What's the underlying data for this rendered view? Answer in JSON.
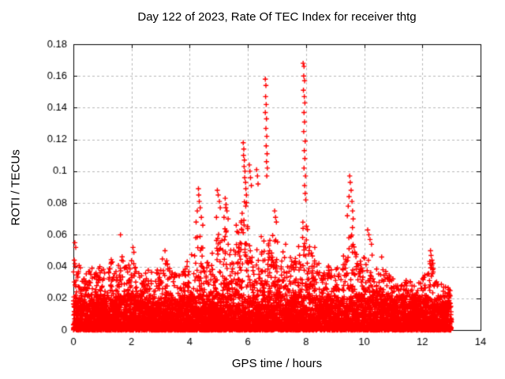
{
  "title": "Day 122 of 2023, Rate Of TEC Index for receiver thtg",
  "x_axis": {
    "label": "GPS time / hours",
    "min": 0,
    "max": 14,
    "tick_values": [
      0,
      2,
      4,
      6,
      8,
      10,
      12,
      14
    ],
    "tick_labels": [
      "0",
      "2",
      "4",
      "6",
      "8",
      "10",
      "12",
      "14"
    ]
  },
  "y_axis": {
    "label": "ROTI / TECUs",
    "min": 0,
    "max": 0.18,
    "tick_values": [
      0,
      0.02,
      0.04,
      0.06,
      0.08,
      0.1,
      0.12,
      0.14,
      0.16,
      0.18
    ],
    "tick_labels": [
      "0",
      "0.02",
      "0.04",
      "0.06",
      "0.08",
      "0.1",
      "0.12",
      "0.14",
      "0.16",
      "0.18"
    ]
  },
  "colors": {
    "marker": "#ff0000",
    "grid": "#b8b8b8",
    "axis": "#000000",
    "background": "#ffffff",
    "text": "#000000"
  },
  "chart_data": {
    "type": "scatter",
    "title": "Day 122 of 2023, Rate Of TEC Index for receiver thtg",
    "xlabel": "GPS time / hours",
    "ylabel": "ROTI / TECUs",
    "xlim": [
      0,
      14
    ],
    "ylim": [
      0,
      0.18
    ],
    "grid": "dashed, both axes at major ticks",
    "legend": "none",
    "marker": "plus",
    "series_name": "ROTI",
    "data_x_range": [
      0,
      13
    ],
    "band_description": "Dense noise band: nearly solid 0-0.022 TECU across 0-13 h, spiky texture up to local envelope",
    "band_envelope": [
      [
        0.0,
        0.056
      ],
      [
        0.15,
        0.045
      ],
      [
        0.3,
        0.038
      ],
      [
        0.6,
        0.042
      ],
      [
        0.8,
        0.048
      ],
      [
        1.0,
        0.038
      ],
      [
        1.3,
        0.046
      ],
      [
        1.5,
        0.04
      ],
      [
        1.65,
        0.052
      ],
      [
        1.8,
        0.04
      ],
      [
        2.05,
        0.05
      ],
      [
        2.3,
        0.036
      ],
      [
        2.6,
        0.038
      ],
      [
        2.9,
        0.04
      ],
      [
        3.15,
        0.048
      ],
      [
        3.4,
        0.038
      ],
      [
        3.7,
        0.036
      ],
      [
        3.95,
        0.045
      ],
      [
        4.15,
        0.055
      ],
      [
        4.3,
        0.072
      ],
      [
        4.5,
        0.048
      ],
      [
        4.7,
        0.045
      ],
      [
        4.95,
        0.065
      ],
      [
        5.1,
        0.055
      ],
      [
        5.25,
        0.08
      ],
      [
        5.45,
        0.05
      ],
      [
        5.6,
        0.062
      ],
      [
        5.75,
        0.07
      ],
      [
        5.9,
        0.095
      ],
      [
        6.05,
        0.07
      ],
      [
        6.2,
        0.05
      ],
      [
        6.35,
        0.06
      ],
      [
        6.5,
        0.06
      ],
      [
        6.65,
        0.075
      ],
      [
        6.8,
        0.055
      ],
      [
        6.95,
        0.07
      ],
      [
        7.1,
        0.048
      ],
      [
        7.3,
        0.052
      ],
      [
        7.55,
        0.045
      ],
      [
        7.75,
        0.06
      ],
      [
        7.95,
        0.08
      ],
      [
        8.1,
        0.055
      ],
      [
        8.3,
        0.05
      ],
      [
        8.55,
        0.04
      ],
      [
        8.8,
        0.045
      ],
      [
        9.0,
        0.04
      ],
      [
        9.2,
        0.042
      ],
      [
        9.45,
        0.065
      ],
      [
        9.6,
        0.07
      ],
      [
        9.8,
        0.045
      ],
      [
        10.0,
        0.05
      ],
      [
        10.2,
        0.058
      ],
      [
        10.4,
        0.04
      ],
      [
        10.6,
        0.045
      ],
      [
        10.9,
        0.035
      ],
      [
        11.2,
        0.032
      ],
      [
        11.5,
        0.035
      ],
      [
        11.8,
        0.032
      ],
      [
        12.0,
        0.035
      ],
      [
        12.3,
        0.048
      ],
      [
        12.5,
        0.032
      ],
      [
        12.7,
        0.03
      ],
      [
        12.9,
        0.028
      ],
      [
        13.0,
        0.024
      ]
    ],
    "outliers": [
      [
        0.05,
        0.055
      ],
      [
        0.08,
        0.052
      ],
      [
        1.62,
        0.06
      ],
      [
        2.05,
        0.052
      ],
      [
        2.08,
        0.049
      ],
      [
        3.15,
        0.05
      ],
      [
        4.22,
        0.068
      ],
      [
        4.26,
        0.075
      ],
      [
        4.3,
        0.089
      ],
      [
        4.31,
        0.085
      ],
      [
        4.33,
        0.081
      ],
      [
        4.36,
        0.077
      ],
      [
        4.4,
        0.071
      ],
      [
        4.45,
        0.066
      ],
      [
        4.92,
        0.071
      ],
      [
        4.95,
        0.088
      ],
      [
        4.98,
        0.085
      ],
      [
        5.02,
        0.081
      ],
      [
        5.05,
        0.077
      ],
      [
        5.18,
        0.071
      ],
      [
        5.22,
        0.083
      ],
      [
        5.25,
        0.079
      ],
      [
        5.28,
        0.075
      ],
      [
        5.32,
        0.07
      ],
      [
        5.6,
        0.066
      ],
      [
        5.63,
        0.062
      ],
      [
        5.84,
        0.118
      ],
      [
        5.86,
        0.114
      ],
      [
        5.85,
        0.11
      ],
      [
        5.88,
        0.107
      ],
      [
        5.87,
        0.103
      ],
      [
        5.9,
        0.1
      ],
      [
        5.89,
        0.096
      ],
      [
        5.92,
        0.093
      ],
      [
        5.93,
        0.089
      ],
      [
        5.95,
        0.085
      ],
      [
        6.05,
        0.104
      ],
      [
        6.07,
        0.1
      ],
      [
        6.09,
        0.096
      ],
      [
        6.12,
        0.091
      ],
      [
        6.3,
        0.101
      ],
      [
        6.33,
        0.097
      ],
      [
        6.35,
        0.092
      ],
      [
        6.6,
        0.158
      ],
      [
        6.62,
        0.154
      ],
      [
        6.61,
        0.147
      ],
      [
        6.63,
        0.142
      ],
      [
        6.6,
        0.137
      ],
      [
        6.64,
        0.133
      ],
      [
        6.62,
        0.127
      ],
      [
        6.65,
        0.122
      ],
      [
        6.63,
        0.116
      ],
      [
        6.66,
        0.111
      ],
      [
        6.64,
        0.106
      ],
      [
        6.67,
        0.102
      ],
      [
        6.65,
        0.097
      ],
      [
        6.92,
        0.075
      ],
      [
        6.95,
        0.071
      ],
      [
        6.98,
        0.068
      ],
      [
        7.3,
        0.054
      ],
      [
        7.9,
        0.168
      ],
      [
        7.93,
        0.166
      ],
      [
        7.92,
        0.16
      ],
      [
        7.95,
        0.157
      ],
      [
        7.91,
        0.151
      ],
      [
        7.94,
        0.147
      ],
      [
        7.96,
        0.143
      ],
      [
        7.93,
        0.137
      ],
      [
        7.95,
        0.131
      ],
      [
        7.92,
        0.125
      ],
      [
        7.97,
        0.119
      ],
      [
        7.94,
        0.113
      ],
      [
        7.96,
        0.108
      ],
      [
        7.93,
        0.102
      ],
      [
        7.98,
        0.097
      ],
      [
        7.95,
        0.091
      ],
      [
        7.97,
        0.086
      ],
      [
        7.99,
        0.082
      ],
      [
        8.3,
        0.052
      ],
      [
        9.42,
        0.072
      ],
      [
        9.45,
        0.078
      ],
      [
        9.48,
        0.084
      ],
      [
        9.5,
        0.097
      ],
      [
        9.52,
        0.093
      ],
      [
        9.55,
        0.088
      ],
      [
        9.58,
        0.081
      ],
      [
        9.6,
        0.075
      ],
      [
        9.62,
        0.07
      ],
      [
        10.12,
        0.063
      ],
      [
        10.16,
        0.06
      ],
      [
        10.2,
        0.057
      ],
      [
        10.25,
        0.054
      ],
      [
        10.6,
        0.046
      ],
      [
        12.28,
        0.05
      ],
      [
        12.3,
        0.047
      ],
      [
        12.33,
        0.044
      ],
      [
        12.36,
        0.042
      ]
    ],
    "density_model": {
      "seed": 122,
      "columns": 2600,
      "solid_band_top": 0.022
    }
  }
}
